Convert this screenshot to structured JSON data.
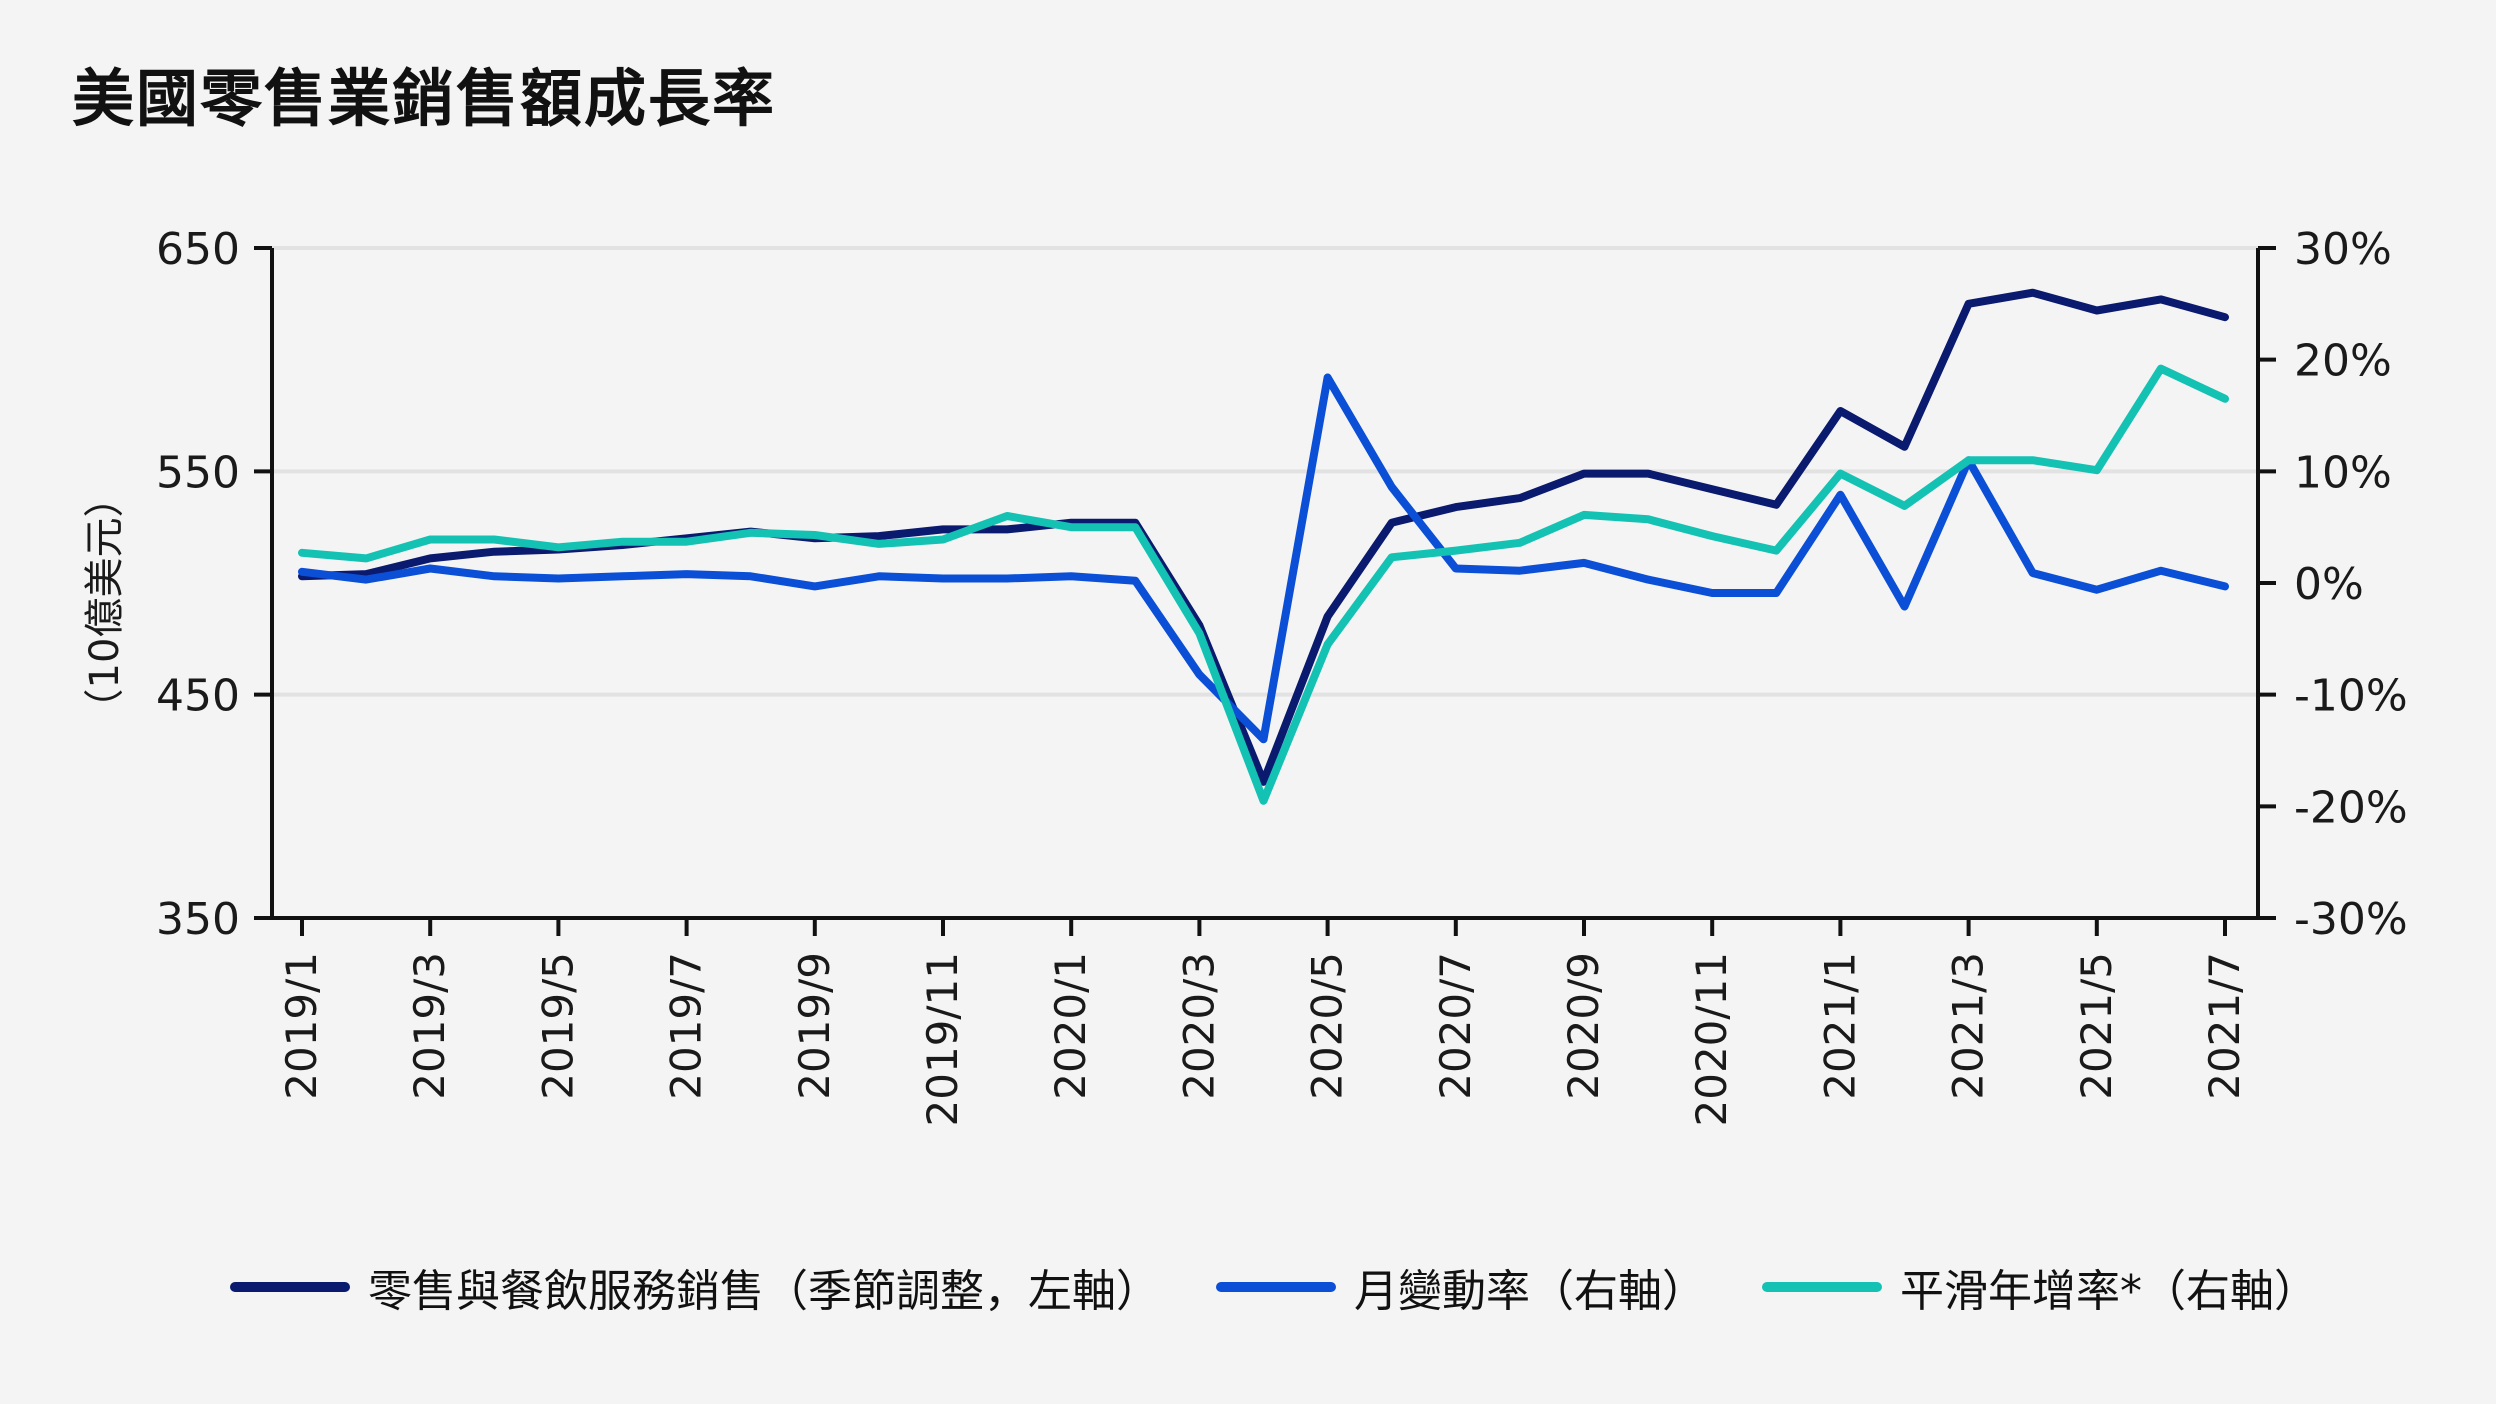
{
  "title": "美國零售業銷售額成長率",
  "chart_data": {
    "type": "line",
    "title": "美國零售業銷售額成長率",
    "x": [
      "2019/1",
      "2019/2",
      "2019/3",
      "2019/4",
      "2019/5",
      "2019/6",
      "2019/7",
      "2019/8",
      "2019/9",
      "2019/10",
      "2019/11",
      "2019/12",
      "2020/1",
      "2020/2",
      "2020/3",
      "2020/4",
      "2020/5",
      "2020/6",
      "2020/7",
      "2020/8",
      "2020/9",
      "2020/10",
      "2020/11",
      "2020/12",
      "2021/1",
      "2021/2",
      "2021/3",
      "2021/4",
      "2021/5",
      "2021/6",
      "2021/7"
    ],
    "x_tick_labels": [
      "2019/1",
      "2019/3",
      "2019/5",
      "2019/7",
      "2019/9",
      "2019/11",
      "2020/1",
      "2020/3",
      "2020/5",
      "2020/7",
      "2020/9",
      "2020/11",
      "2021/1",
      "2021/3",
      "2021/5",
      "2021/7"
    ],
    "ylabel_left": "（10億美元）",
    "ylim_left": [
      350,
      650
    ],
    "yticks_left": [
      "650",
      "550",
      "450",
      "350"
    ],
    "ylim_right": [
      -30,
      30
    ],
    "yticks_right": [
      "30%",
      "20%",
      "10%",
      "0%",
      "-10%",
      "-20%",
      "-30%"
    ],
    "grid": "horizontal",
    "legend_position": "bottom",
    "series": [
      {
        "name": "零售與餐飲服務銷售（季節調整，左軸）",
        "axis": "left",
        "color": "#0a1a6e",
        "values": [
          503,
          504,
          511,
          514,
          515,
          517,
          520,
          523,
          520,
          521,
          524,
          524,
          527,
          527,
          481,
          411,
          485,
          527,
          534,
          538,
          549,
          549,
          542,
          535,
          577,
          561,
          625,
          630,
          622,
          627,
          619
        ]
      },
      {
        "name": "月變動率（右軸）",
        "axis": "right",
        "color": "#0a4fd6",
        "values": [
          1.0,
          0.3,
          1.3,
          0.6,
          0.4,
          0.6,
          0.8,
          0.6,
          -0.3,
          0.6,
          0.4,
          0.4,
          0.6,
          0.2,
          -8.2,
          -14.0,
          18.4,
          8.6,
          1.3,
          1.1,
          1.8,
          0.3,
          -0.9,
          -0.9,
          7.9,
          -2.1,
          11.0,
          0.9,
          -0.6,
          1.1,
          -0.3
        ]
      },
      {
        "name": "平滑年增率*（右軸）",
        "axis": "right",
        "color": "#14c2b3",
        "values": [
          2.7,
          2.2,
          3.9,
          3.9,
          3.2,
          3.7,
          3.7,
          4.5,
          4.3,
          3.5,
          3.9,
          6.0,
          5.0,
          5.0,
          -4.5,
          -19.5,
          -5.5,
          2.3,
          2.9,
          3.6,
          6.1,
          5.7,
          4.2,
          2.9,
          9.8,
          6.9,
          11.0,
          11.0,
          10.1,
          19.2,
          16.5
        ]
      }
    ]
  }
}
